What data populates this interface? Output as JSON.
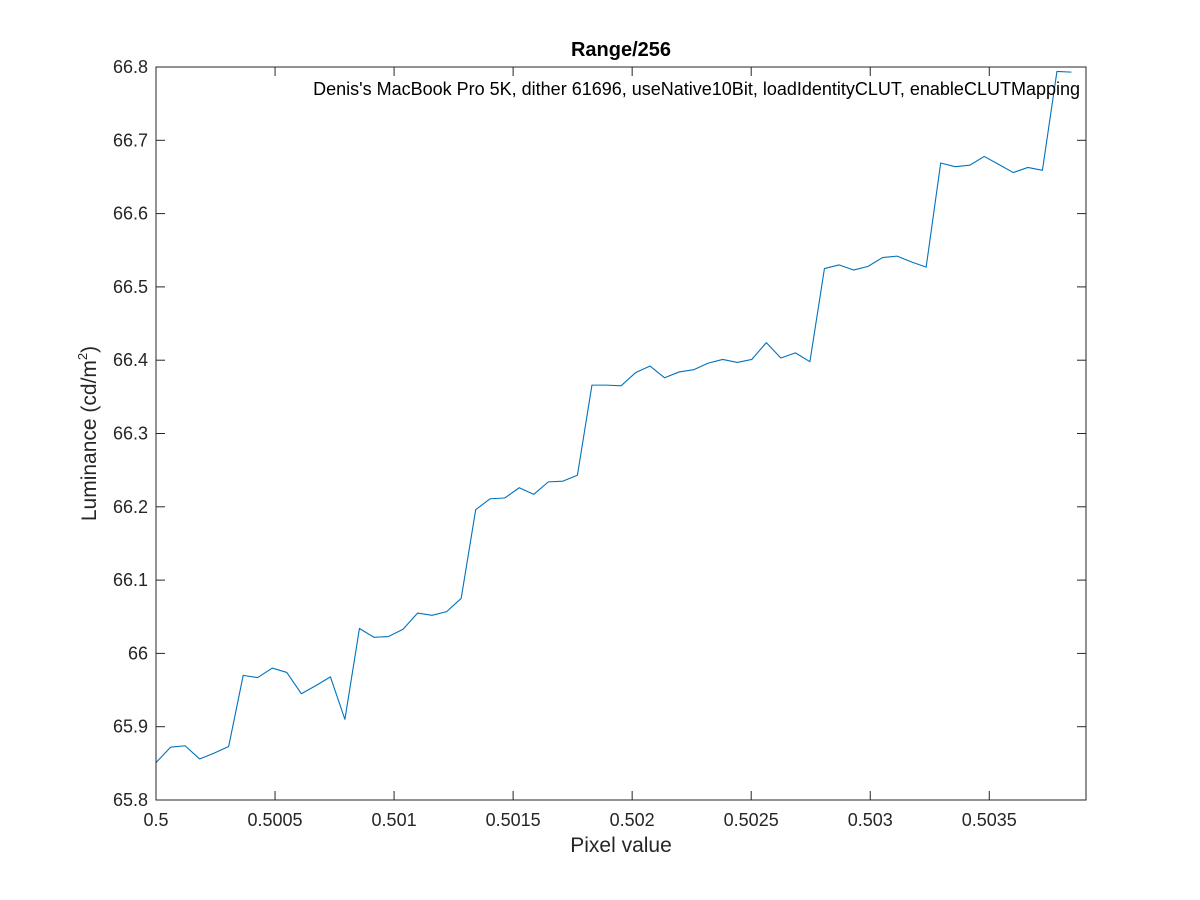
{
  "chart_data": {
    "type": "line",
    "title": "Range/256",
    "annotation": "Denis's MacBook Pro 5K, dither 61696, useNative10Bit, loadIdentityCLUT, enableCLUTMapping",
    "xlabel": "Pixel value",
    "ylabel": {
      "text": "Luminance (cd/m",
      "superscript": "2",
      "suffix": ")"
    },
    "xlim": [
      0.5,
      0.50390625
    ],
    "ylim": [
      65.8,
      66.8
    ],
    "xticks": [
      0.5,
      0.5005,
      0.501,
      0.5015,
      0.502,
      0.5025,
      0.503,
      0.5035
    ],
    "xtick_labels": [
      "0.5",
      "0.5005",
      "0.501",
      "0.5015",
      "0.502",
      "0.5025",
      "0.503",
      "0.5035"
    ],
    "yticks": [
      65.8,
      65.9,
      66.0,
      66.1,
      66.2,
      66.3,
      66.4,
      66.5,
      66.6,
      66.7,
      66.8
    ],
    "ytick_labels": [
      "65.8",
      "65.9",
      "66",
      "66.1",
      "66.2",
      "66.3",
      "66.4",
      "66.5",
      "66.6",
      "66.7",
      "66.8"
    ],
    "grid": false,
    "box": true,
    "line_color": "#0072bd",
    "series": [
      {
        "x_start": 0.5,
        "x_step": 6.103515625e-05,
        "values": [
          65.851,
          65.872,
          65.874,
          65.856,
          65.864,
          65.873,
          65.97,
          65.967,
          65.98,
          65.974,
          65.945,
          65.956,
          65.968,
          65.91,
          66.034,
          66.022,
          66.023,
          66.033,
          66.055,
          66.052,
          66.057,
          66.075,
          66.196,
          66.211,
          66.212,
          66.226,
          66.217,
          66.234,
          66.235,
          66.243,
          66.366,
          66.366,
          66.365,
          66.383,
          66.392,
          66.376,
          66.384,
          66.387,
          66.396,
          66.401,
          66.397,
          66.401,
          66.424,
          66.403,
          66.41,
          66.398,
          66.525,
          66.53,
          66.523,
          66.528,
          66.54,
          66.542,
          66.534,
          66.527,
          66.669,
          66.664,
          66.666,
          66.678,
          66.667,
          66.656,
          66.663,
          66.659,
          66.794,
          66.793
        ]
      }
    ]
  }
}
